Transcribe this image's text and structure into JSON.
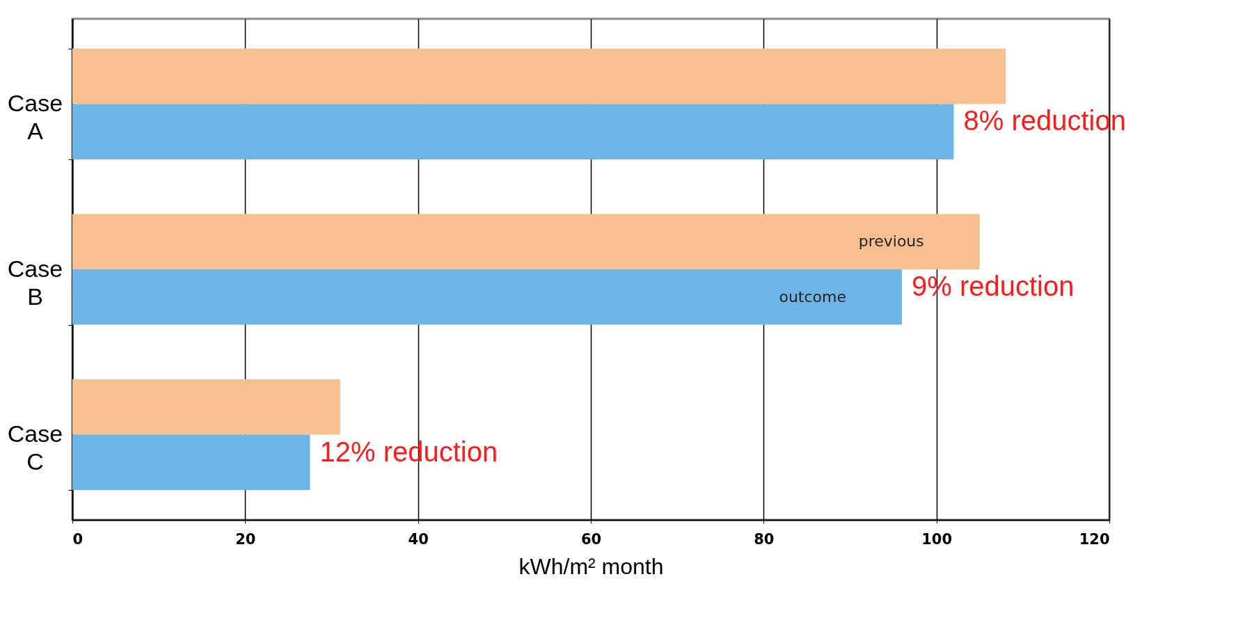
{
  "chart_data": {
    "type": "bar",
    "orientation": "horizontal",
    "categories": [
      "Case A",
      "Case B",
      "Case C"
    ],
    "series": [
      {
        "name": "previous",
        "color": "#f7c08f",
        "values": [
          108,
          105,
          31
        ]
      },
      {
        "name": "outcome",
        "color": "#6db5e6",
        "values": [
          102,
          96,
          27.5
        ]
      }
    ],
    "xlim": [
      0,
      120
    ],
    "xticks": [
      0,
      20,
      40,
      60,
      80,
      100,
      120
    ],
    "xlabel": "kWh/m² month",
    "grid": "x",
    "legend": false,
    "annotations": [
      {
        "text": "8%  reduction",
        "x": 102,
        "y": "Case A"
      },
      {
        "text": "9% reduction",
        "x": 96,
        "y": "Case B"
      },
      {
        "text": "12% reduction",
        "x": 27.5,
        "y": "Case C"
      }
    ]
  }
}
